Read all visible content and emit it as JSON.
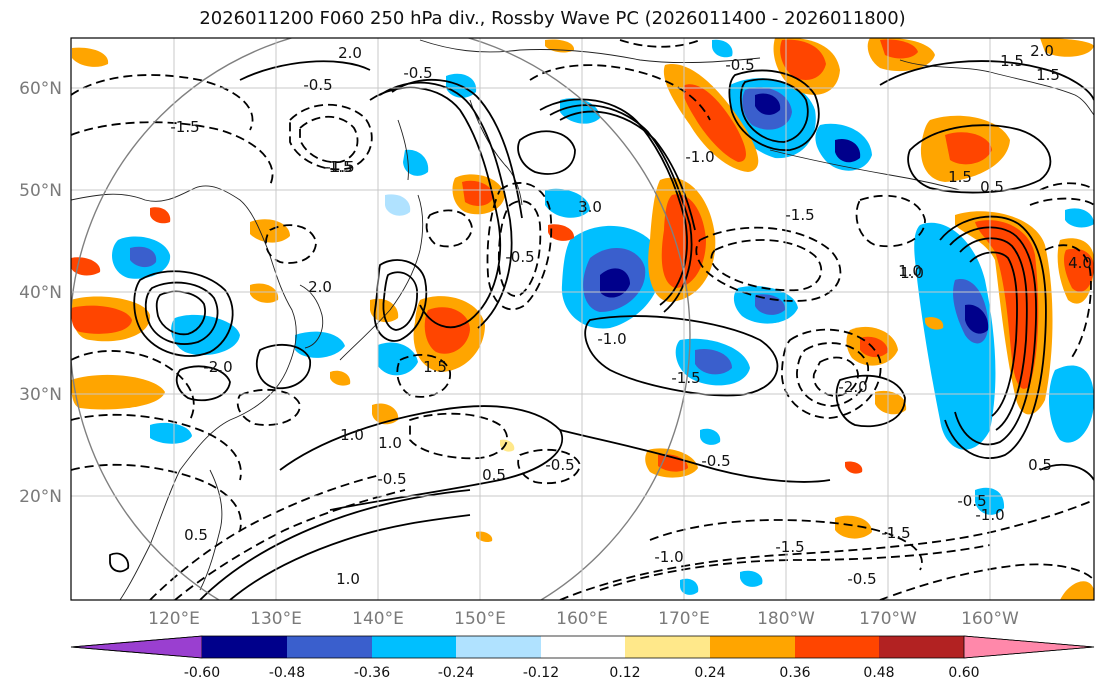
{
  "title": "2026011200 F060 250 hPa div., Rossby Wave PC (2026011400 - 2026011800)",
  "map": {
    "lon_ticks": [
      "120°E",
      "130°E",
      "140°E",
      "150°E",
      "160°E",
      "170°E",
      "180°W",
      "170°W",
      "160°W"
    ],
    "lat_ticks": [
      "60°N",
      "50°N",
      "40°N",
      "30°N",
      "20°N"
    ],
    "contour_labels": [
      "-0.5",
      "-1.5",
      "2.0",
      "-0.5",
      "-1.5",
      "3.0",
      "-1.0",
      "-0.5",
      "-1.5",
      "1.0",
      "4.0",
      "2.0",
      "1.5",
      "0.5",
      "-1.0",
      "0.5",
      "-1.5",
      "-2.0",
      "1.0",
      "-0.5",
      "0.5",
      "1.0",
      "-0.5",
      "-1.5",
      "-1.5",
      "-0.5",
      "1.0",
      "1.5",
      "-0.5",
      "-1.0",
      "1.5",
      "2.0",
      "1.5",
      "-1.5",
      "-2.0",
      "-0.5",
      "1.0",
      "-0.5",
      "0.5",
      "-1.0"
    ]
  },
  "colorbar": {
    "labels": [
      "-0.60",
      "-0.48",
      "-0.36",
      "-0.24",
      "-0.12",
      "0.12",
      "0.24",
      "0.36",
      "0.48",
      "0.60"
    ],
    "colors": [
      "#9a3fd0",
      "#00008b",
      "#3a5fcd",
      "#00bfff",
      "#b0e2ff",
      "#ffffff",
      "#ffe88a",
      "#ffa500",
      "#ff4500",
      "#b22222",
      "#ff88aa"
    ]
  },
  "shading_colors": {
    "neg_light": "#b0e2ff",
    "neg_mid": "#00bfff",
    "neg_strong": "#3a5fcd",
    "neg_max": "#00008b",
    "pos_light": "#ffe88a",
    "pos_mid": "#ffa500",
    "pos_strong": "#ff4500",
    "pos_max": "#b22222"
  }
}
